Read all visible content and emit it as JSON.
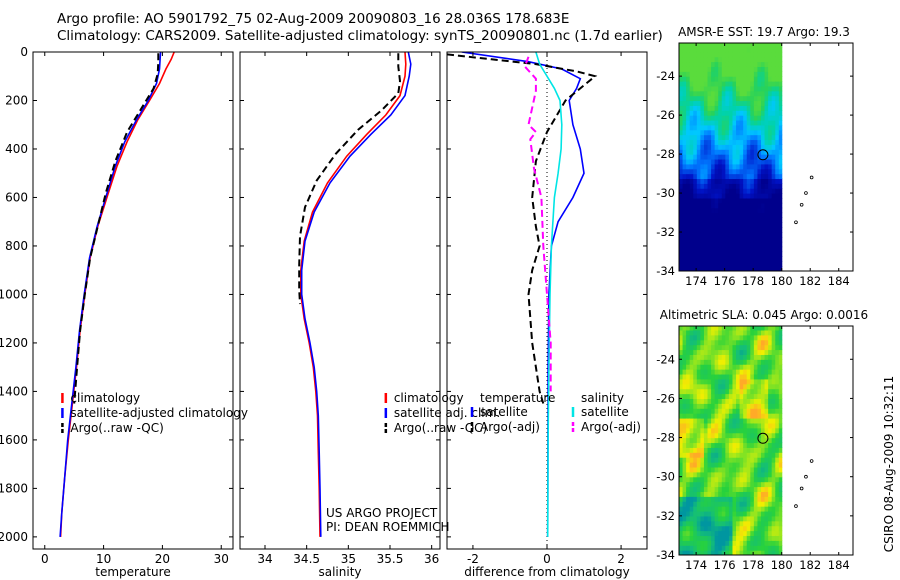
{
  "header": {
    "line1": "Argo profile: AO 5901792_75 02-Aug-2009 20090803_16 28.036S 178.683E",
    "line2": "Climatology: CARS2009. Satellite-adjusted climatology: synTS_20090801.nc (1.7d earlier)"
  },
  "chart_data": [
    {
      "type": "line",
      "panel": "temperature",
      "xlabel": "temperature",
      "xlim": [
        -2,
        32
      ],
      "ylim": [
        0,
        2050
      ],
      "y_reversed": true,
      "xticks": [
        0,
        10,
        20,
        30
      ],
      "xtick_labels": [
        "0",
        "10",
        "20",
        "30"
      ],
      "yticks": [
        0,
        200,
        400,
        600,
        800,
        1000,
        1200,
        1400,
        1600,
        1800,
        2000
      ],
      "ytick_labels": [
        "0",
        "200",
        "400",
        "600",
        "800",
        "1000",
        "1200",
        "1400",
        "1600",
        "1800",
        "2000"
      ],
      "legend": [
        "climatology",
        "satellite-adjusted climatology",
        "Argo(..raw -QC)"
      ],
      "legend_colors": [
        "#ff0000",
        "#0000ff",
        "#000000"
      ],
      "legend_styles": [
        "solid",
        "solid",
        "dashed"
      ],
      "series": [
        {
          "name": "climatology",
          "color": "#ff0000",
          "dash": false,
          "points": [
            [
              22.0,
              0
            ],
            [
              21.5,
              30
            ],
            [
              20.6,
              70
            ],
            [
              19.5,
              130
            ],
            [
              17.8,
              200
            ],
            [
              15.8,
              280
            ],
            [
              14.0,
              370
            ],
            [
              12.3,
              470
            ],
            [
              10.7,
              590
            ],
            [
              9.0,
              720
            ],
            [
              7.7,
              850
            ],
            [
              6.8,
              1000
            ],
            [
              6.0,
              1150
            ],
            [
              5.4,
              1300
            ],
            [
              4.7,
              1450
            ],
            [
              4.0,
              1600
            ],
            [
              3.4,
              1750
            ],
            [
              2.9,
              1900
            ],
            [
              2.7,
              2000
            ]
          ]
        },
        {
          "name": "satellite-adjusted climatology",
          "color": "#0000ff",
          "dash": false,
          "points": [
            [
              19.7,
              0
            ],
            [
              19.6,
              30
            ],
            [
              19.5,
              70
            ],
            [
              19.0,
              130
            ],
            [
              17.6,
              200
            ],
            [
              15.6,
              280
            ],
            [
              13.6,
              370
            ],
            [
              12.0,
              470
            ],
            [
              10.5,
              590
            ],
            [
              8.9,
              720
            ],
            [
              7.6,
              850
            ],
            [
              6.7,
              1000
            ],
            [
              5.9,
              1150
            ],
            [
              5.3,
              1300
            ],
            [
              4.6,
              1450
            ],
            [
              3.9,
              1600
            ],
            [
              3.4,
              1750
            ],
            [
              2.9,
              1900
            ],
            [
              2.6,
              2000
            ]
          ]
        },
        {
          "name": "Argo(..raw -QC)",
          "color": "#000000",
          "dash": true,
          "points": [
            [
              19.3,
              5
            ],
            [
              19.3,
              40
            ],
            [
              19.2,
              90
            ],
            [
              18.5,
              150
            ],
            [
              16.5,
              230
            ],
            [
              14.0,
              330
            ],
            [
              12.0,
              450
            ],
            [
              10.4,
              580
            ],
            [
              9.0,
              720
            ],
            [
              7.7,
              850
            ],
            [
              6.8,
              1000
            ],
            [
              6.0,
              1150
            ],
            [
              5.5,
              1300
            ],
            [
              5.0,
              1450
            ]
          ]
        }
      ]
    },
    {
      "type": "line",
      "panel": "salinity",
      "xlabel": "salinity",
      "xlim": [
        33.7,
        36.1
      ],
      "ylim": [
        0,
        2050
      ],
      "y_reversed": true,
      "xticks": [
        34,
        34.5,
        35,
        35.5,
        36
      ],
      "xtick_labels": [
        "34",
        "34.5",
        "35",
        "35.5",
        "36"
      ],
      "legend": [
        "climatology",
        "satellite adj. clim.",
        "Argo(..raw -QC)"
      ],
      "legend_colors": [
        "#ff0000",
        "#0000ff",
        "#000000"
      ],
      "legend_styles": [
        "solid",
        "solid",
        "dashed"
      ],
      "annotation": [
        "US ARGO PROJECT",
        "PI: DEAN ROEMMICH"
      ],
      "series": [
        {
          "name": "climatology",
          "color": "#ff0000",
          "dash": false,
          "points": [
            [
              35.68,
              0
            ],
            [
              35.69,
              50
            ],
            [
              35.68,
              100
            ],
            [
              35.62,
              180
            ],
            [
              35.45,
              260
            ],
            [
              35.22,
              340
            ],
            [
              34.98,
              430
            ],
            [
              34.75,
              540
            ],
            [
              34.57,
              660
            ],
            [
              34.47,
              780
            ],
            [
              34.43,
              900
            ],
            [
              34.43,
              1000
            ],
            [
              34.47,
              1100
            ],
            [
              34.53,
              1200
            ],
            [
              34.58,
              1300
            ],
            [
              34.61,
              1400
            ],
            [
              34.63,
              1500
            ],
            [
              34.64,
              1650
            ],
            [
              34.65,
              1800
            ],
            [
              34.66,
              2000
            ]
          ]
        },
        {
          "name": "satellite adj. clim.",
          "color": "#0000ff",
          "dash": false,
          "points": [
            [
              35.72,
              0
            ],
            [
              35.75,
              50
            ],
            [
              35.73,
              100
            ],
            [
              35.68,
              180
            ],
            [
              35.51,
              260
            ],
            [
              35.27,
              340
            ],
            [
              35.02,
              430
            ],
            [
              34.78,
              540
            ],
            [
              34.59,
              660
            ],
            [
              34.48,
              780
            ],
            [
              34.44,
              900
            ],
            [
              34.44,
              1000
            ],
            [
              34.48,
              1100
            ],
            [
              34.54,
              1200
            ],
            [
              34.59,
              1300
            ],
            [
              34.62,
              1400
            ],
            [
              34.64,
              1500
            ],
            [
              34.65,
              1650
            ],
            [
              34.66,
              1800
            ],
            [
              34.67,
              2000
            ]
          ]
        },
        {
          "name": "Argo(..raw -QC)",
          "color": "#000000",
          "dash": true,
          "points": [
            [
              35.6,
              5
            ],
            [
              35.6,
              60
            ],
            [
              35.62,
              120
            ],
            [
              35.6,
              170
            ],
            [
              35.4,
              240
            ],
            [
              35.12,
              320
            ],
            [
              34.85,
              420
            ],
            [
              34.62,
              530
            ],
            [
              34.48,
              640
            ],
            [
              34.42,
              760
            ],
            [
              34.41,
              880
            ],
            [
              34.41,
              980
            ],
            [
              34.42,
              1040
            ]
          ]
        }
      ]
    },
    {
      "type": "line",
      "panel": "difference",
      "xlabel": "difference from climatology",
      "xlim": [
        -2.7,
        2.7
      ],
      "ylim": [
        0,
        2050
      ],
      "y_reversed": true,
      "xticks": [
        -2,
        0,
        2
      ],
      "xtick_labels": [
        "-2",
        "0",
        "2"
      ],
      "legend_groups": [
        "temperature",
        "salinity"
      ],
      "legend": [
        "satellite",
        "Argo(-adj)",
        "satellite",
        "Argo(-adj)"
      ],
      "legend_colors": [
        "#0000ff",
        "#000000",
        "#00e5e5",
        "#ff00ff"
      ],
      "legend_styles": [
        "solid",
        "dashed",
        "solid",
        "dashed"
      ],
      "series": [
        {
          "name": "temperature satellite",
          "color": "#0000ff",
          "dash": false,
          "points": [
            [
              -2.3,
              0
            ],
            [
              -0.5,
              40
            ],
            [
              0.4,
              70
            ],
            [
              0.9,
              110
            ],
            [
              0.8,
              150
            ],
            [
              0.6,
              200
            ],
            [
              0.7,
              300
            ],
            [
              0.9,
              400
            ],
            [
              1.0,
              500
            ],
            [
              0.7,
              600
            ],
            [
              0.3,
              700
            ],
            [
              0.12,
              800
            ],
            [
              0.05,
              1000
            ],
            [
              0.03,
              1300
            ],
            [
              0.02,
              2000
            ]
          ]
        },
        {
          "name": "temperature Argo(-adj)",
          "color": "#000000",
          "dash": true,
          "points": [
            [
              -2.7,
              10
            ],
            [
              -1.5,
              30
            ],
            [
              -0.3,
              50
            ],
            [
              0.8,
              80
            ],
            [
              1.3,
              100
            ],
            [
              0.5,
              200
            ],
            [
              0.0,
              330
            ],
            [
              -0.3,
              450
            ],
            [
              -0.4,
              600
            ],
            [
              -0.3,
              720
            ],
            [
              -0.2,
              800
            ],
            [
              -0.4,
              900
            ],
            [
              -0.5,
              1000
            ],
            [
              -0.4,
              1200
            ],
            [
              -0.2,
              1400
            ],
            [
              -0.1,
              1450
            ]
          ]
        },
        {
          "name": "salinity satellite",
          "color": "#00e5e5",
          "dash": false,
          "points": [
            [
              -0.3,
              0
            ],
            [
              -0.2,
              50
            ],
            [
              0.0,
              100
            ],
            [
              0.2,
              150
            ],
            [
              0.35,
              200
            ],
            [
              0.4,
              300
            ],
            [
              0.38,
              400
            ],
            [
              0.3,
              500
            ],
            [
              0.2,
              600
            ],
            [
              0.12,
              800
            ],
            [
              0.08,
              1000
            ],
            [
              0.05,
              1300
            ],
            [
              0.03,
              1600
            ],
            [
              0.02,
              2000
            ]
          ]
        },
        {
          "name": "salinity Argo(-adj)",
          "color": "#ff00ff",
          "dash": true,
          "points": [
            [
              -0.5,
              20
            ],
            [
              -0.6,
              60
            ],
            [
              -0.3,
              110
            ],
            [
              -0.3,
              160
            ],
            [
              -0.5,
              300
            ],
            [
              -0.3,
              330
            ],
            [
              -0.45,
              360
            ],
            [
              -0.35,
              480
            ],
            [
              -0.15,
              600
            ],
            [
              -0.1,
              800
            ],
            [
              0.0,
              1000
            ],
            [
              0.1,
              1200
            ],
            [
              0.1,
              1400
            ]
          ]
        }
      ]
    }
  ],
  "maps": {
    "xticks": [
      174,
      176,
      178,
      180,
      182,
      184
    ],
    "yticks": [
      -24,
      -26,
      -28,
      -30,
      -32,
      -34
    ],
    "xlim": [
      172.8,
      185
    ],
    "ylim": [
      -34,
      -22.3
    ],
    "field_lon_max": 180,
    "profile": {
      "lon": 178.683,
      "lat": -28.036
    },
    "track": [
      [
        181.0,
        -31.5
      ],
      [
        181.4,
        -30.6
      ],
      [
        181.7,
        -30.0
      ],
      [
        182.1,
        -29.2
      ]
    ],
    "sst": {
      "title": "AMSR-E SST: 19.7 Argo: 19.3",
      "palette": "sst-blue-green"
    },
    "sla": {
      "title": "Altimetric SLA: 0.045 Argo: 0.0016",
      "palette": "sla-green-yellow"
    }
  },
  "footer": {
    "stamp": "CSIRO 08-Aug-2009 10:32:11"
  }
}
